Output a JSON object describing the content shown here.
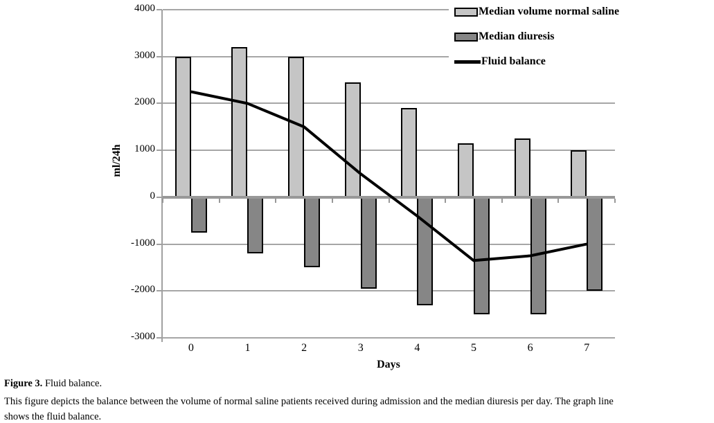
{
  "figure": {
    "caption_label": "Figure 3.",
    "caption_text": "Fluid balance.",
    "description_lines": [
      "This figure depicts the balance between the volume of normal saline patients received during admission and the median diuresis per day. The graph line",
      "shows the fluid balance."
    ]
  },
  "chart_data": {
    "type": "bar",
    "subtype": "clustered-bars-with-line-overlay",
    "title": "",
    "categories": [
      "0",
      "1",
      "2",
      "3",
      "4",
      "5",
      "6",
      "7"
    ],
    "xlabel": "Days",
    "ylabel": "ml/24h",
    "ylim": [
      -3000,
      4000
    ],
    "yticks": [
      4000,
      3000,
      2000,
      1000,
      0,
      -1000,
      -2000,
      -3000
    ],
    "grid": true,
    "legend_position": "top-right",
    "grid_color": "#a6a6a6",
    "axis_color": "#989898",
    "series": [
      {
        "name": "Median volume normal saline",
        "type": "bar",
        "color": "#c5c5c5",
        "values": [
          3000,
          3200,
          3000,
          2450,
          1900,
          1150,
          1250,
          1000
        ]
      },
      {
        "name": "Median diuresis",
        "type": "bar",
        "color": "#868686",
        "values": [
          -750,
          -1200,
          -1500,
          -1950,
          -2300,
          -2500,
          -2500,
          -2000
        ]
      },
      {
        "name": "Fluid balance",
        "type": "line",
        "color": "#000000",
        "values": [
          2250,
          2000,
          1500,
          500,
          -400,
          -1350,
          -1250,
          -1000
        ]
      }
    ]
  }
}
